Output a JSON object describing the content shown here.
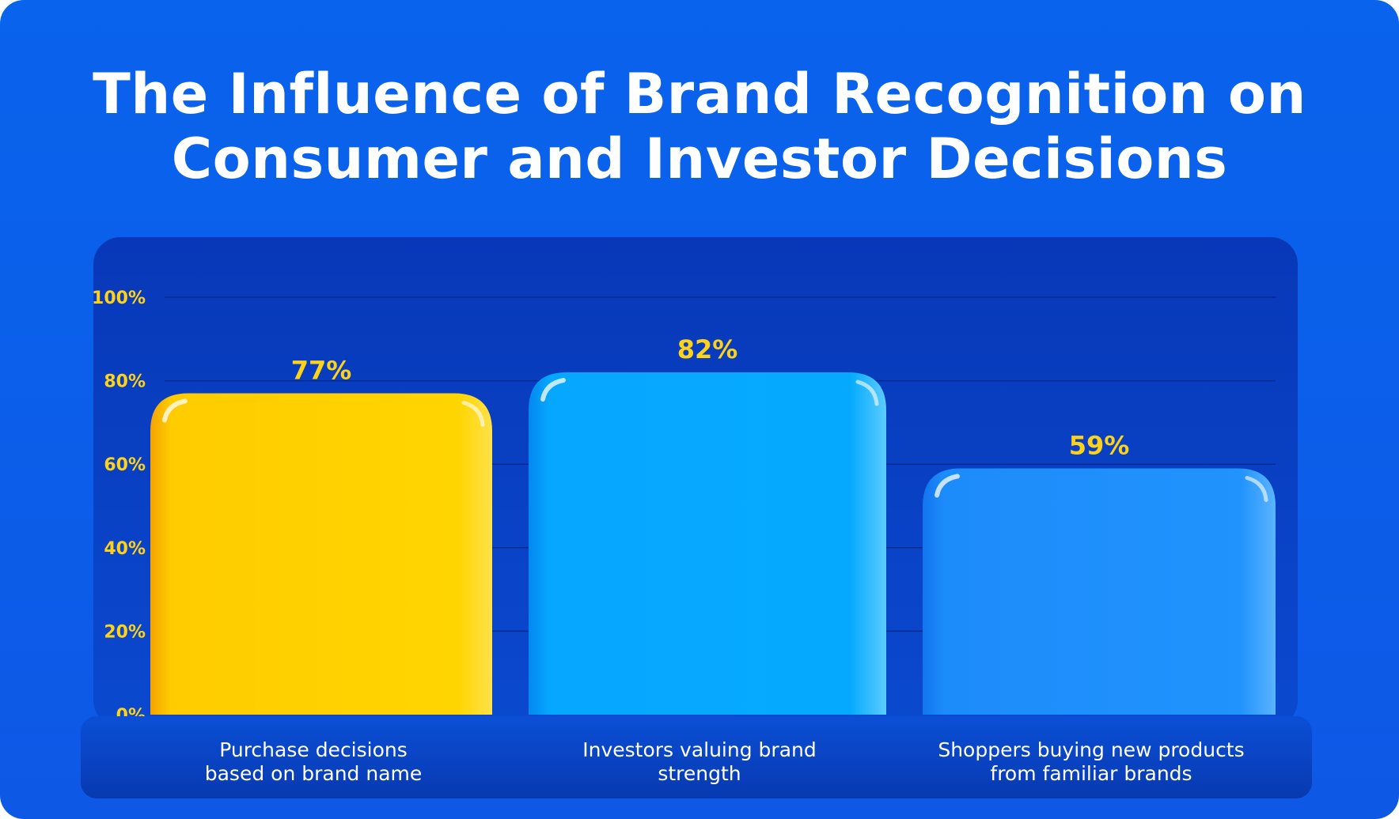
{
  "title_lines": [
    "The Influence of Brand Recognition on",
    "Consumer and Investor Decisions"
  ],
  "colors": {
    "background": "#0b60ea",
    "panel": "#0a3fc4",
    "base": "#0a46c9",
    "tick_text": "#ffd21a",
    "bar_yellow": "#ffd000",
    "bar_cyan": "#04a9ff",
    "bar_blue": "#1d8ffb"
  },
  "chart_data": {
    "type": "bar",
    "title": "The Influence of Brand Recognition on Consumer and Investor Decisions",
    "categories": [
      [
        "Purchase decisions",
        "based on brand name"
      ],
      [
        "Investors valuing brand",
        "strength"
      ],
      [
        "Shoppers buying new products",
        "from familiar brands"
      ]
    ],
    "values": [
      77,
      82,
      59
    ],
    "value_labels": [
      "77%",
      "82%",
      "59%"
    ],
    "bar_colors": [
      "#ffd000",
      "#04a9ff",
      "#1d8ffb"
    ],
    "ylim": [
      0,
      100
    ],
    "yticks": [
      0,
      20,
      40,
      60,
      80,
      100
    ],
    "ytick_labels": [
      "0%",
      "20%",
      "40%",
      "60%",
      "80%",
      "100%"
    ],
    "grid": true,
    "legend": "none"
  }
}
